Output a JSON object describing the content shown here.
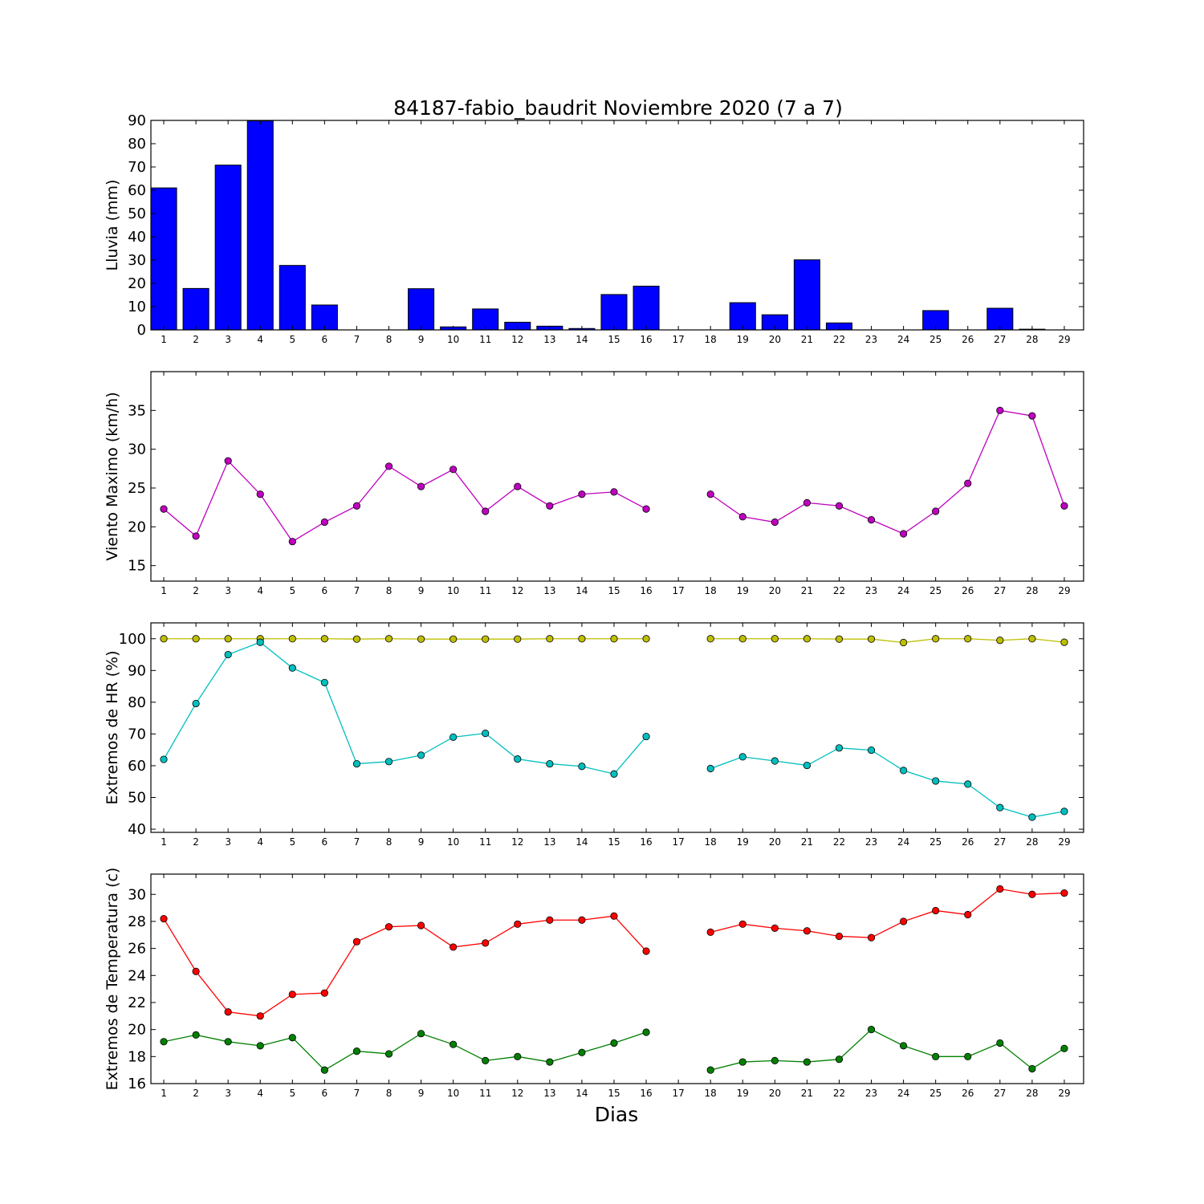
{
  "title": "84187-fabio_baudrit Noviembre 2020  (7 a 7)",
  "xlabel": "Dias",
  "chart_data": [
    {
      "type": "bar",
      "ylabel": "Lluvia (mm)",
      "ylim": [
        0,
        90
      ],
      "yticks": [
        0,
        10,
        20,
        30,
        40,
        50,
        60,
        70,
        80,
        90
      ],
      "categories": [
        1,
        2,
        3,
        4,
        5,
        6,
        7,
        8,
        9,
        10,
        11,
        12,
        13,
        14,
        15,
        16,
        17,
        18,
        19,
        20,
        21,
        22,
        23,
        24,
        25,
        26,
        27,
        28,
        29
      ],
      "values": [
        61,
        17.8,
        70.8,
        89.8,
        27.7,
        10.7,
        0,
        0,
        17.7,
        1.3,
        9,
        3.3,
        1.6,
        0.6,
        15.2,
        18.8,
        0,
        0,
        11.7,
        6.5,
        30.1,
        3,
        0,
        0,
        8.3,
        0,
        9.3,
        0.3,
        0
      ],
      "color": "#0000ff"
    },
    {
      "type": "line",
      "ylabel": "Viento Maximo (km/h)",
      "ylim": [
        13,
        40
      ],
      "yticks": [
        15,
        20,
        25,
        30,
        35
      ],
      "series": [
        {
          "color": "#bf00bf",
          "x": [
            1,
            2,
            3,
            4,
            5,
            6,
            7,
            8,
            9,
            10,
            11,
            12,
            13,
            14,
            15,
            16,
            17,
            18,
            19,
            20,
            21,
            22,
            23,
            24,
            25,
            26,
            27,
            28,
            29
          ],
          "y": [
            22.3,
            18.8,
            28.5,
            24.2,
            18.1,
            20.6,
            22.7,
            27.8,
            25.2,
            27.4,
            22,
            25.2,
            22.7,
            24.2,
            24.5,
            22.3,
            null,
            24.2,
            21.3,
            20.6,
            23.1,
            22.7,
            20.9,
            19.1,
            22,
            25.6,
            35,
            34.3,
            22.7
          ]
        }
      ]
    },
    {
      "type": "line",
      "ylabel": "Extremos de HR (%)",
      "ylim": [
        39,
        105
      ],
      "yticks": [
        40,
        50,
        60,
        70,
        80,
        90,
        100
      ],
      "series": [
        {
          "color": "#bfbf00",
          "x": [
            1,
            2,
            3,
            4,
            5,
            6,
            7,
            8,
            9,
            10,
            11,
            12,
            13,
            14,
            15,
            16,
            17,
            18,
            19,
            20,
            21,
            22,
            23,
            24,
            25,
            26,
            27,
            28,
            29
          ],
          "y": [
            100,
            100,
            100,
            100,
            100,
            100,
            99.9,
            100,
            99.9,
            99.9,
            99.9,
            99.9,
            100,
            100,
            100,
            100,
            null,
            100,
            100,
            100,
            100,
            99.9,
            99.9,
            98.8,
            100,
            100,
            99.5,
            100,
            98.9
          ]
        },
        {
          "color": "#00bfbf",
          "x": [
            1,
            2,
            3,
            4,
            5,
            6,
            7,
            8,
            9,
            10,
            11,
            12,
            13,
            14,
            15,
            16,
            17,
            18,
            19,
            20,
            21,
            22,
            23,
            24,
            25,
            26,
            27,
            28,
            29
          ],
          "y": [
            62,
            79.6,
            95,
            98.9,
            90.8,
            86.2,
            60.6,
            61.3,
            63.3,
            69,
            70.2,
            62.1,
            60.6,
            59.8,
            57.4,
            69.2,
            null,
            59.1,
            62.8,
            61.5,
            60.1,
            65.6,
            64.9,
            58.5,
            55.2,
            54.2,
            46.8,
            43.8,
            45.6
          ]
        }
      ]
    },
    {
      "type": "line",
      "ylabel": "Extremos de Temperatura (c)",
      "ylim": [
        16,
        31.5
      ],
      "yticks": [
        16,
        18,
        20,
        22,
        24,
        26,
        28,
        30
      ],
      "series": [
        {
          "color": "#ff0000",
          "x": [
            1,
            2,
            3,
            4,
            5,
            6,
            7,
            8,
            9,
            10,
            11,
            12,
            13,
            14,
            15,
            16,
            17,
            18,
            19,
            20,
            21,
            22,
            23,
            24,
            25,
            26,
            27,
            28,
            29
          ],
          "y": [
            28.2,
            24.3,
            21.3,
            21,
            22.6,
            22.7,
            26.5,
            27.6,
            27.7,
            26.1,
            26.4,
            27.8,
            28.1,
            28.1,
            28.4,
            25.8,
            null,
            27.2,
            27.8,
            27.5,
            27.3,
            26.9,
            26.8,
            28,
            28.8,
            28.5,
            30.4,
            30,
            30.1
          ]
        },
        {
          "color": "#008000",
          "x": [
            1,
            2,
            3,
            4,
            5,
            6,
            7,
            8,
            9,
            10,
            11,
            12,
            13,
            14,
            15,
            16,
            17,
            18,
            19,
            20,
            21,
            22,
            23,
            24,
            25,
            26,
            27,
            28,
            29
          ],
          "y": [
            19.1,
            19.6,
            19.1,
            18.8,
            19.4,
            17,
            18.4,
            18.2,
            19.7,
            18.9,
            17.7,
            18,
            17.6,
            18.3,
            19,
            19.8,
            null,
            17,
            17.6,
            17.7,
            17.6,
            17.8,
            20,
            18.8,
            18,
            18,
            19,
            17.1,
            18.6
          ]
        }
      ]
    }
  ]
}
